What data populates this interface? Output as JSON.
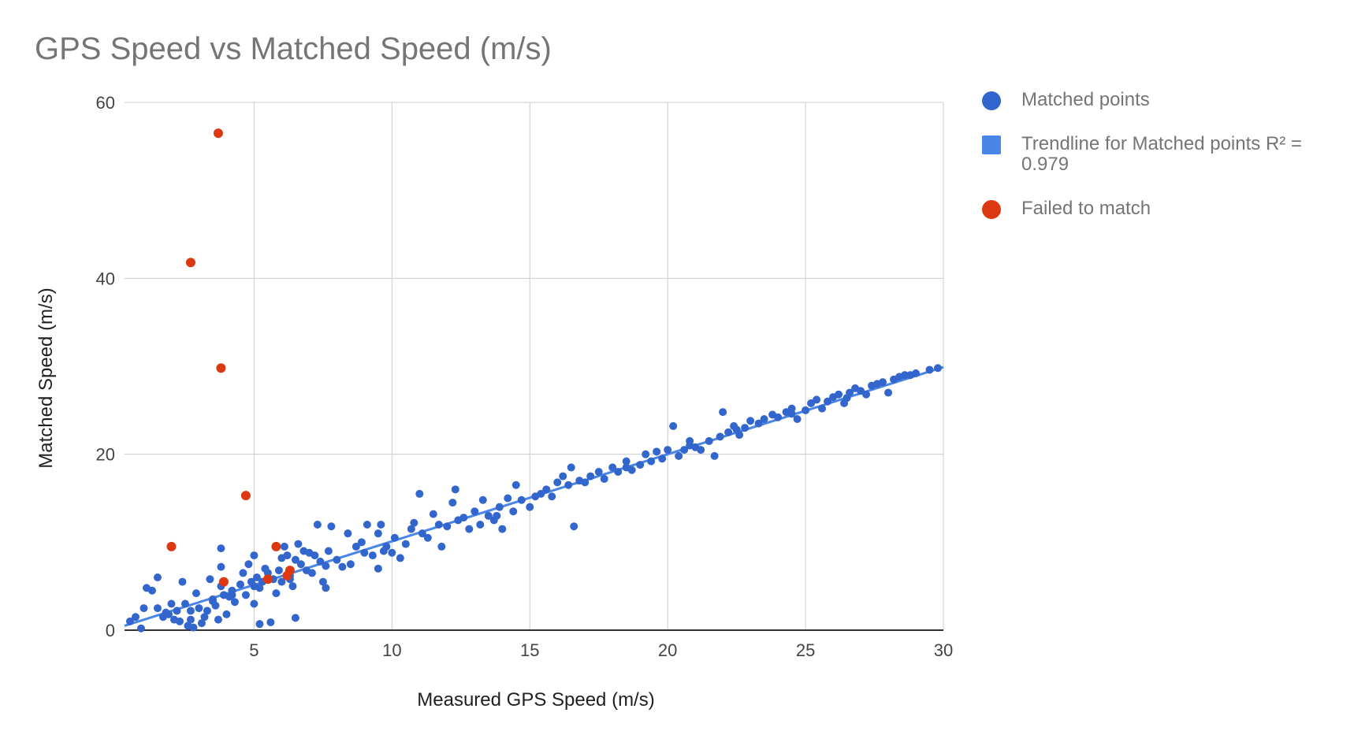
{
  "chart_data": {
    "type": "scatter",
    "title": "GPS Speed vs Matched Speed (m/s)",
    "xlabel": "Measured GPS Speed (m/s)",
    "ylabel": "Matched Speed (m/s)",
    "xlim": [
      0.3,
      30
    ],
    "ylim": [
      0,
      60
    ],
    "xticks": [
      5,
      10,
      15,
      20,
      25,
      30
    ],
    "yticks": [
      0,
      20,
      40,
      60
    ],
    "grid": true,
    "legend_position": "right",
    "series": [
      {
        "name": "Matched points",
        "color": "#3366cc",
        "points": [
          [
            0.5,
            1.0
          ],
          [
            0.7,
            1.5
          ],
          [
            0.9,
            0.2
          ],
          [
            1.0,
            2.5
          ],
          [
            1.1,
            4.8
          ],
          [
            1.3,
            4.5
          ],
          [
            1.5,
            6.0
          ],
          [
            1.5,
            2.5
          ],
          [
            1.7,
            1.5
          ],
          [
            1.8,
            2.0
          ],
          [
            1.9,
            1.8
          ],
          [
            2.0,
            3.0
          ],
          [
            2.1,
            1.2
          ],
          [
            2.2,
            2.2
          ],
          [
            2.3,
            1.0
          ],
          [
            2.4,
            5.5
          ],
          [
            2.5,
            3.0
          ],
          [
            2.6,
            0.5
          ],
          [
            2.7,
            1.2
          ],
          [
            2.8,
            0.3
          ],
          [
            2.9,
            4.2
          ],
          [
            3.0,
            2.5
          ],
          [
            3.1,
            0.8
          ],
          [
            3.2,
            1.5
          ],
          [
            3.3,
            2.2
          ],
          [
            3.4,
            5.8
          ],
          [
            3.5,
            3.5
          ],
          [
            3.6,
            2.8
          ],
          [
            3.7,
            1.2
          ],
          [
            3.8,
            5.0
          ],
          [
            3.8,
            9.3
          ],
          [
            3.8,
            7.2
          ],
          [
            3.9,
            4.0
          ],
          [
            4.0,
            1.8
          ],
          [
            4.1,
            3.8
          ],
          [
            4.2,
            4.5
          ],
          [
            4.3,
            3.2
          ],
          [
            4.5,
            5.2
          ],
          [
            4.6,
            6.5
          ],
          [
            4.7,
            4.0
          ],
          [
            4.8,
            7.5
          ],
          [
            4.9,
            5.5
          ],
          [
            5.0,
            8.5
          ],
          [
            5.0,
            3.0
          ],
          [
            5.1,
            6.0
          ],
          [
            5.2,
            4.8
          ],
          [
            5.2,
            0.7
          ],
          [
            5.3,
            5.5
          ],
          [
            5.4,
            7.0
          ],
          [
            5.5,
            6.5
          ],
          [
            5.6,
            0.9
          ],
          [
            5.7,
            5.8
          ],
          [
            5.8,
            4.2
          ],
          [
            5.9,
            6.8
          ],
          [
            6.0,
            5.5
          ],
          [
            6.0,
            8.2
          ],
          [
            6.1,
            9.5
          ],
          [
            6.2,
            8.5
          ],
          [
            6.3,
            6.2
          ],
          [
            6.4,
            5.0
          ],
          [
            6.5,
            8.0
          ],
          [
            6.5,
            1.4
          ],
          [
            6.6,
            9.8
          ],
          [
            6.7,
            7.5
          ],
          [
            6.8,
            9.0
          ],
          [
            6.9,
            6.8
          ],
          [
            7.0,
            8.8
          ],
          [
            7.1,
            6.5
          ],
          [
            7.2,
            8.5
          ],
          [
            7.3,
            12.0
          ],
          [
            7.4,
            7.8
          ],
          [
            7.5,
            5.5
          ],
          [
            7.6,
            4.8
          ],
          [
            7.7,
            9.0
          ],
          [
            7.8,
            11.8
          ],
          [
            8.0,
            8.0
          ],
          [
            8.2,
            7.2
          ],
          [
            8.4,
            11.0
          ],
          [
            8.5,
            7.5
          ],
          [
            8.7,
            9.5
          ],
          [
            8.9,
            10.0
          ],
          [
            9.0,
            8.8
          ],
          [
            9.1,
            12.0
          ],
          [
            9.3,
            8.5
          ],
          [
            9.5,
            11.0
          ],
          [
            9.5,
            7.0
          ],
          [
            9.6,
            12.0
          ],
          [
            9.8,
            9.5
          ],
          [
            10.0,
            8.8
          ],
          [
            10.1,
            10.5
          ],
          [
            10.3,
            8.2
          ],
          [
            10.5,
            9.8
          ],
          [
            10.7,
            11.5
          ],
          [
            10.8,
            12.2
          ],
          [
            11.0,
            15.5
          ],
          [
            11.1,
            11.0
          ],
          [
            11.3,
            10.5
          ],
          [
            11.5,
            13.2
          ],
          [
            11.7,
            12.0
          ],
          [
            11.8,
            9.5
          ],
          [
            12.0,
            11.8
          ],
          [
            12.2,
            14.5
          ],
          [
            12.3,
            16.0
          ],
          [
            12.4,
            12.5
          ],
          [
            12.6,
            12.8
          ],
          [
            12.8,
            11.5
          ],
          [
            13.0,
            13.5
          ],
          [
            13.2,
            12.0
          ],
          [
            13.3,
            14.8
          ],
          [
            13.5,
            13.0
          ],
          [
            13.7,
            12.5
          ],
          [
            13.9,
            14.0
          ],
          [
            14.0,
            11.5
          ],
          [
            14.2,
            15.0
          ],
          [
            14.4,
            13.5
          ],
          [
            14.5,
            16.5
          ],
          [
            14.7,
            14.8
          ],
          [
            15.0,
            14.0
          ],
          [
            15.2,
            15.2
          ],
          [
            15.4,
            15.5
          ],
          [
            15.6,
            16.0
          ],
          [
            15.8,
            15.2
          ],
          [
            16.0,
            16.8
          ],
          [
            16.2,
            17.5
          ],
          [
            16.4,
            16.5
          ],
          [
            16.5,
            18.5
          ],
          [
            16.6,
            11.8
          ],
          [
            16.8,
            17.0
          ],
          [
            17.0,
            16.8
          ],
          [
            17.2,
            17.5
          ],
          [
            17.5,
            18.0
          ],
          [
            17.7,
            17.2
          ],
          [
            18.0,
            18.5
          ],
          [
            18.2,
            18.0
          ],
          [
            18.5,
            19.2
          ],
          [
            18.7,
            18.2
          ],
          [
            19.0,
            18.8
          ],
          [
            19.2,
            20.0
          ],
          [
            19.4,
            19.2
          ],
          [
            19.6,
            20.3
          ],
          [
            19.8,
            19.5
          ],
          [
            20.0,
            20.5
          ],
          [
            20.2,
            23.2
          ],
          [
            20.4,
            19.8
          ],
          [
            20.6,
            20.5
          ],
          [
            20.8,
            21.0
          ],
          [
            21.0,
            20.8
          ],
          [
            21.2,
            20.5
          ],
          [
            21.5,
            21.5
          ],
          [
            21.7,
            19.8
          ],
          [
            21.9,
            22.0
          ],
          [
            22.0,
            24.8
          ],
          [
            22.2,
            22.5
          ],
          [
            22.4,
            23.2
          ],
          [
            22.6,
            22.2
          ],
          [
            22.8,
            23.0
          ],
          [
            23.0,
            23.8
          ],
          [
            23.3,
            23.5
          ],
          [
            23.5,
            24.0
          ],
          [
            23.8,
            24.5
          ],
          [
            24.0,
            24.2
          ],
          [
            24.3,
            24.8
          ],
          [
            24.5,
            25.2
          ],
          [
            24.7,
            24.0
          ],
          [
            25.0,
            25.0
          ],
          [
            25.2,
            25.8
          ],
          [
            25.4,
            26.2
          ],
          [
            25.6,
            25.2
          ],
          [
            25.8,
            26.0
          ],
          [
            26.0,
            26.5
          ],
          [
            26.2,
            26.8
          ],
          [
            26.4,
            25.8
          ],
          [
            26.6,
            27.0
          ],
          [
            26.8,
            27.5
          ],
          [
            27.0,
            27.2
          ],
          [
            27.2,
            26.8
          ],
          [
            27.4,
            27.8
          ],
          [
            27.6,
            28.0
          ],
          [
            27.8,
            28.2
          ],
          [
            28.0,
            27.0
          ],
          [
            28.2,
            28.5
          ],
          [
            28.4,
            28.8
          ],
          [
            28.6,
            29.0
          ],
          [
            28.8,
            29.0
          ],
          [
            29.0,
            29.2
          ],
          [
            29.5,
            29.6
          ],
          [
            29.8,
            29.8
          ],
          [
            20.8,
            21.5
          ],
          [
            13.8,
            13.0
          ],
          [
            9.7,
            9.0
          ],
          [
            7.6,
            7.3
          ],
          [
            6.3,
            5.8
          ],
          [
            5.0,
            5.0
          ],
          [
            4.2,
            4.0
          ],
          [
            3.5,
            3.3
          ],
          [
            2.7,
            2.2
          ],
          [
            22.5,
            22.8
          ],
          [
            24.5,
            24.6
          ],
          [
            26.5,
            26.4
          ],
          [
            18.5,
            18.5
          ]
        ]
      },
      {
        "name": "Trendline for Matched points R² = 0.979",
        "color": "#4a86e8",
        "type": "line",
        "points": [
          [
            0.3,
            0.5
          ],
          [
            30,
            29.9
          ]
        ]
      },
      {
        "name": "Failed to match",
        "color": "#dc3912",
        "points": [
          [
            3.7,
            56.5
          ],
          [
            2.7,
            41.8
          ],
          [
            3.8,
            29.8
          ],
          [
            4.7,
            15.3
          ],
          [
            2.0,
            9.5
          ],
          [
            5.8,
            9.5
          ],
          [
            3.9,
            5.5
          ],
          [
            5.5,
            5.8
          ],
          [
            6.2,
            6.2
          ],
          [
            6.3,
            6.8
          ]
        ]
      }
    ]
  }
}
